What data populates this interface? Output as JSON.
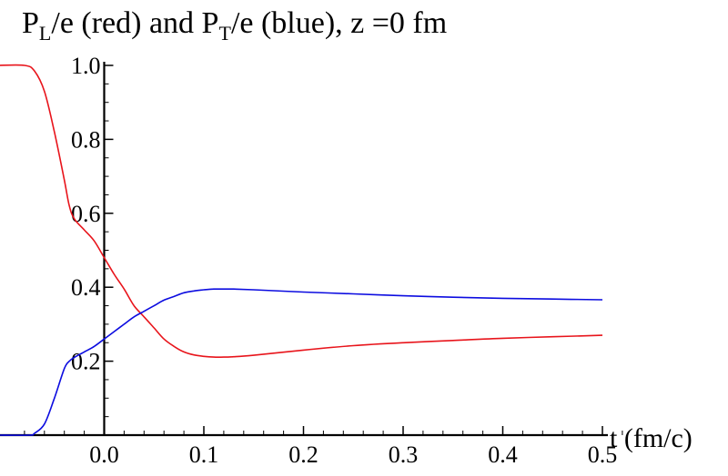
{
  "chart_data": {
    "type": "line",
    "title": {
      "p": "P",
      "l_sub": "L",
      "mid": "/e (red) and P",
      "t_sub": "T",
      "end": "/e (blue), z =0 fm"
    },
    "xlabel": "t (fm/c)",
    "ylabel": "",
    "xlim": [
      -0.1,
      0.5
    ],
    "ylim": [
      0.0,
      1.0
    ],
    "x_ticks": [
      "0.0",
      "0.1",
      "0.2",
      "0.3",
      "0.4",
      "0.5"
    ],
    "y_ticks": [
      "0.2",
      "0.4",
      "0.6",
      "0.8",
      "1.0"
    ],
    "x_tick_values": [
      0.0,
      0.1,
      0.2,
      0.3,
      0.4,
      0.5
    ],
    "y_tick_values": [
      0.2,
      0.4,
      0.6,
      0.8,
      1.0
    ],
    "grid": false,
    "series": [
      {
        "color": "#e8141b",
        "x": [
          -0.107,
          -0.08,
          -0.07,
          -0.06,
          -0.05,
          -0.04,
          -0.035,
          -0.03,
          -0.02,
          -0.01,
          0.0,
          0.01,
          0.02,
          0.03,
          0.04,
          0.05,
          0.06,
          0.07,
          0.08,
          0.09,
          0.1,
          0.11,
          0.12,
          0.13,
          0.15,
          0.2,
          0.25,
          0.3,
          0.35,
          0.4,
          0.45,
          0.5
        ],
        "y": [
          1.0,
          1.0,
          0.985,
          0.93,
          0.82,
          0.69,
          0.62,
          0.585,
          0.555,
          0.525,
          0.48,
          0.435,
          0.395,
          0.35,
          0.32,
          0.29,
          0.26,
          0.24,
          0.225,
          0.217,
          0.213,
          0.211,
          0.211,
          0.212,
          0.216,
          0.23,
          0.242,
          0.25,
          0.256,
          0.262,
          0.266,
          0.27
        ]
      },
      {
        "color": "#0c0ce0",
        "x": [
          -0.107,
          -0.075,
          -0.07,
          -0.06,
          -0.05,
          -0.04,
          -0.035,
          -0.03,
          -0.02,
          -0.01,
          0.0,
          0.01,
          0.02,
          0.03,
          0.04,
          0.05,
          0.06,
          0.07,
          0.08,
          0.09,
          0.1,
          0.11,
          0.12,
          0.13,
          0.15,
          0.2,
          0.25,
          0.3,
          0.35,
          0.4,
          0.45,
          0.5
        ],
        "y": [
          0.0,
          0.0,
          0.005,
          0.03,
          0.1,
          0.18,
          0.2,
          0.21,
          0.225,
          0.24,
          0.26,
          0.28,
          0.3,
          0.32,
          0.335,
          0.35,
          0.365,
          0.375,
          0.385,
          0.39,
          0.393,
          0.395,
          0.395,
          0.395,
          0.393,
          0.387,
          0.382,
          0.377,
          0.373,
          0.37,
          0.368,
          0.366
        ]
      }
    ]
  }
}
